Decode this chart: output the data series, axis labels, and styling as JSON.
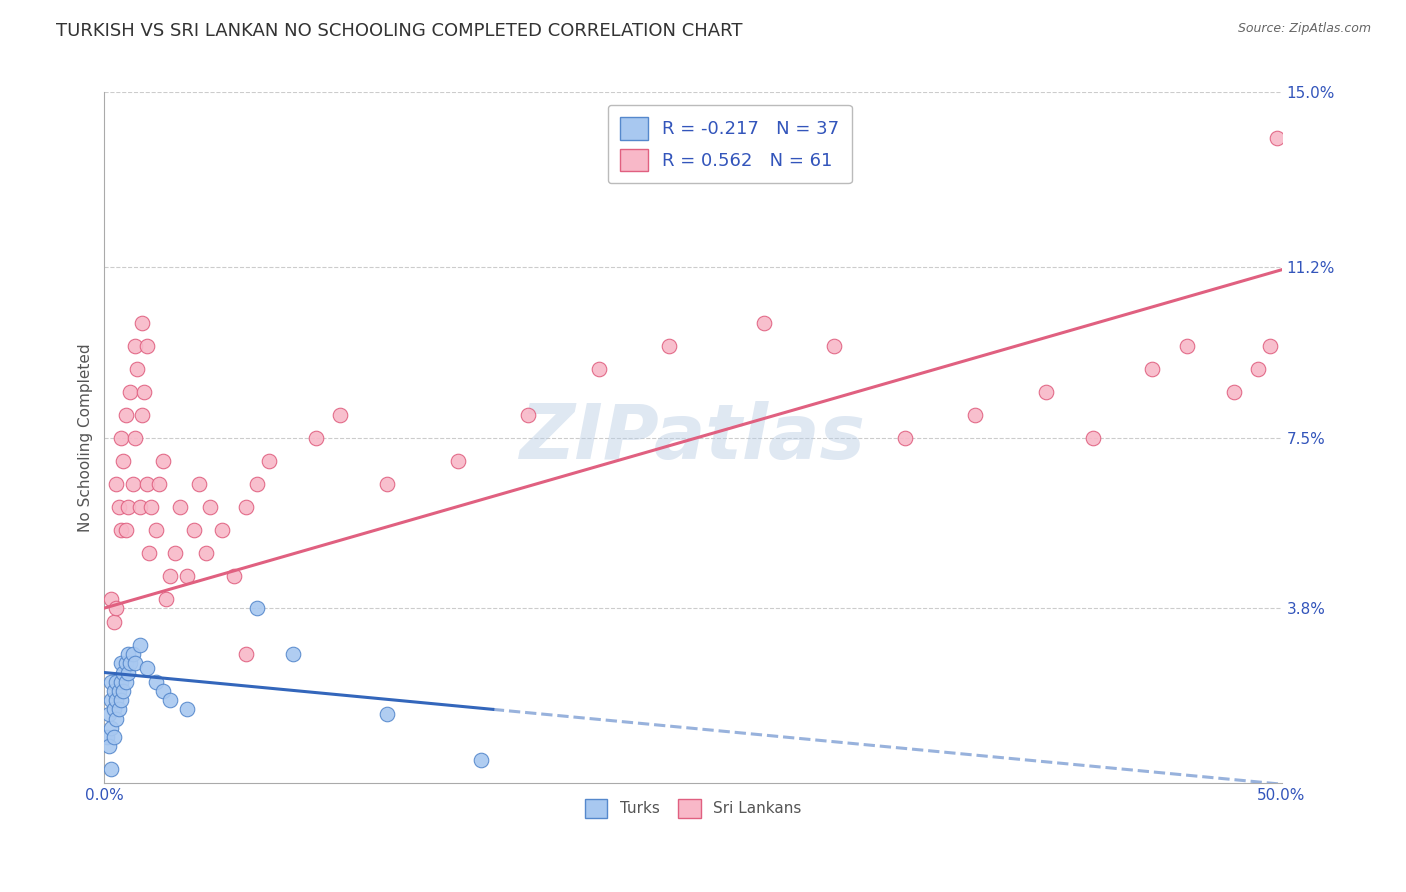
{
  "title": "TURKISH VS SRI LANKAN NO SCHOOLING COMPLETED CORRELATION CHART",
  "source": "Source: ZipAtlas.com",
  "ylabel": "No Schooling Completed",
  "xlim": [
    0.0,
    0.5
  ],
  "ylim": [
    0.0,
    0.15
  ],
  "xtick_positions": [
    0.0,
    0.1,
    0.2,
    0.3,
    0.4,
    0.5
  ],
  "xticklabels": [
    "0.0%",
    "",
    "",
    "",
    "",
    "50.0%"
  ],
  "ytick_positions": [
    0.038,
    0.075,
    0.112,
    0.15
  ],
  "ytick_labels": [
    "3.8%",
    "7.5%",
    "11.2%",
    "15.0%"
  ],
  "turks_x": [
    0.001,
    0.002,
    0.002,
    0.003,
    0.003,
    0.003,
    0.004,
    0.004,
    0.004,
    0.005,
    0.005,
    0.005,
    0.006,
    0.006,
    0.007,
    0.007,
    0.007,
    0.008,
    0.008,
    0.009,
    0.009,
    0.01,
    0.01,
    0.011,
    0.012,
    0.013,
    0.015,
    0.018,
    0.022,
    0.025,
    0.028,
    0.035,
    0.065,
    0.08,
    0.12,
    0.16,
    0.003
  ],
  "turks_y": [
    0.01,
    0.008,
    0.015,
    0.012,
    0.018,
    0.022,
    0.01,
    0.016,
    0.02,
    0.014,
    0.018,
    0.022,
    0.016,
    0.02,
    0.018,
    0.022,
    0.026,
    0.02,
    0.024,
    0.022,
    0.026,
    0.024,
    0.028,
    0.026,
    0.028,
    0.026,
    0.03,
    0.025,
    0.022,
    0.02,
    0.018,
    0.016,
    0.038,
    0.028,
    0.015,
    0.005,
    0.003
  ],
  "srilankans_x": [
    0.003,
    0.004,
    0.005,
    0.005,
    0.006,
    0.007,
    0.007,
    0.008,
    0.009,
    0.009,
    0.01,
    0.011,
    0.012,
    0.013,
    0.013,
    0.014,
    0.015,
    0.016,
    0.016,
    0.017,
    0.018,
    0.018,
    0.019,
    0.02,
    0.022,
    0.023,
    0.025,
    0.026,
    0.028,
    0.03,
    0.032,
    0.035,
    0.038,
    0.04,
    0.043,
    0.045,
    0.05,
    0.055,
    0.06,
    0.06,
    0.065,
    0.07,
    0.09,
    0.1,
    0.12,
    0.15,
    0.18,
    0.21,
    0.24,
    0.28,
    0.31,
    0.34,
    0.37,
    0.4,
    0.42,
    0.445,
    0.46,
    0.48,
    0.49,
    0.495,
    0.498
  ],
  "srilankans_y": [
    0.04,
    0.035,
    0.038,
    0.065,
    0.06,
    0.055,
    0.075,
    0.07,
    0.055,
    0.08,
    0.06,
    0.085,
    0.065,
    0.075,
    0.095,
    0.09,
    0.06,
    0.08,
    0.1,
    0.085,
    0.065,
    0.095,
    0.05,
    0.06,
    0.055,
    0.065,
    0.07,
    0.04,
    0.045,
    0.05,
    0.06,
    0.045,
    0.055,
    0.065,
    0.05,
    0.06,
    0.055,
    0.045,
    0.06,
    0.028,
    0.065,
    0.07,
    0.075,
    0.08,
    0.065,
    0.07,
    0.08,
    0.09,
    0.095,
    0.1,
    0.095,
    0.075,
    0.08,
    0.085,
    0.075,
    0.09,
    0.095,
    0.085,
    0.09,
    0.095,
    0.14
  ],
  "turks_color": "#a8c8f0",
  "srilankans_color": "#f8b8c8",
  "turks_edge_color": "#5588cc",
  "srilankans_edge_color": "#e06080",
  "turks_R": -0.217,
  "turks_N": 37,
  "srilankans_R": 0.562,
  "srilankans_N": 61,
  "trend_turks_color": "#3366bb",
  "trend_srilankans_color": "#e06080",
  "turks_trend_x_solid_end": 0.165,
  "watermark": "ZIPatlas",
  "background_color": "#ffffff",
  "grid_color": "#cccccc",
  "axis_color": "#aaaaaa",
  "title_fontsize": 13,
  "label_fontsize": 11,
  "tick_fontsize": 11,
  "legend_fontsize": 13,
  "marker_size": 110,
  "line_width": 2.2
}
